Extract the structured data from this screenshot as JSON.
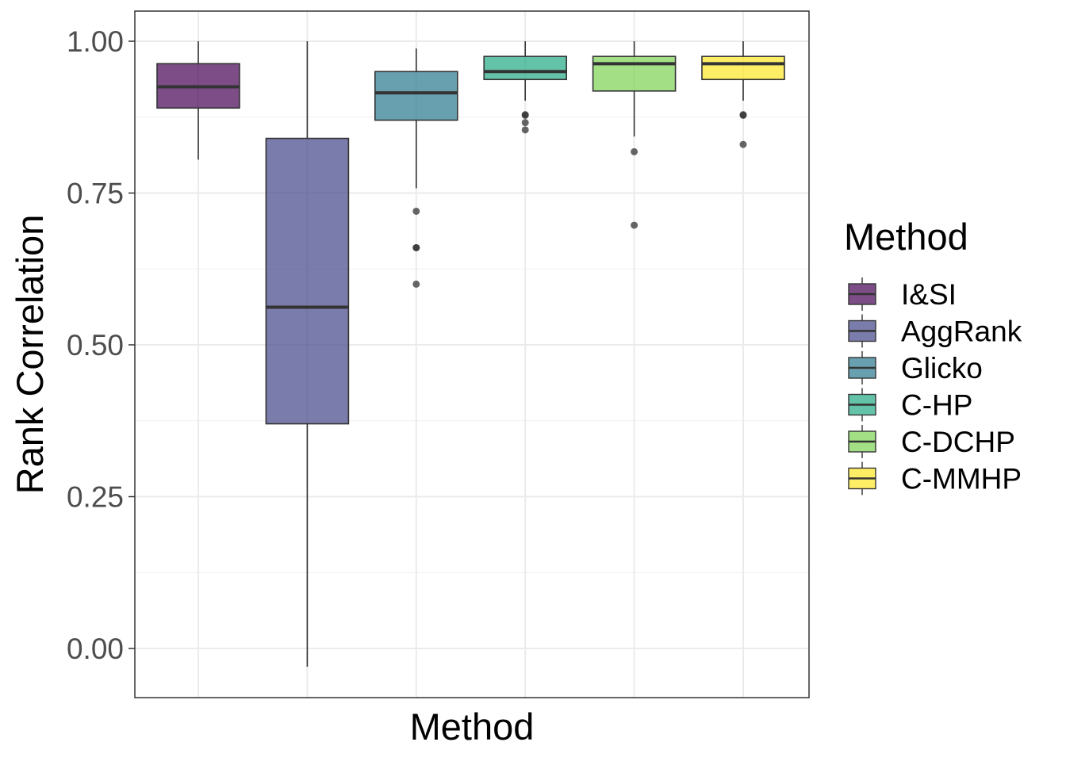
{
  "chart_data": {
    "type": "boxplot",
    "title": "",
    "xlabel": "Method",
    "ylabel": "Rank Correlation",
    "ylim": [
      -0.08,
      1.05
    ],
    "y_ticks": [
      0.0,
      0.25,
      0.5,
      0.75,
      1.0
    ],
    "y_tick_labels": [
      "0.00",
      "0.25",
      "0.50",
      "0.75",
      "1.00"
    ],
    "grid": true,
    "legend": {
      "title": "Method",
      "position": "right"
    },
    "series": [
      {
        "name": "I&SI",
        "color": "#440154",
        "whisker_low": 0.805,
        "q1": 0.89,
        "median": 0.925,
        "q3": 0.963,
        "whisker_high": 1.0,
        "outliers": []
      },
      {
        "name": "AggRank",
        "color": "#414487",
        "whisker_low": -0.03,
        "q1": 0.37,
        "median": 0.562,
        "q3": 0.84,
        "whisker_high": 1.0,
        "outliers": []
      },
      {
        "name": "Glicko",
        "color": "#2A788E",
        "whisker_low": 0.758,
        "q1": 0.87,
        "median": 0.915,
        "q3": 0.95,
        "whisker_high": 0.988,
        "outliers": [
          0.72,
          0.66,
          0.66,
          0.6
        ]
      },
      {
        "name": "C-HP",
        "color": "#22A884",
        "whisker_low": 0.902,
        "q1": 0.937,
        "median": 0.95,
        "q3": 0.975,
        "whisker_high": 1.0,
        "outliers": [
          0.879,
          0.878,
          0.866,
          0.854
        ]
      },
      {
        "name": "C-DCHP",
        "color": "#7AD151",
        "whisker_low": 0.843,
        "q1": 0.918,
        "median": 0.963,
        "q3": 0.975,
        "whisker_high": 1.0,
        "outliers": [
          0.818,
          0.697
        ]
      },
      {
        "name": "C-MMHP",
        "color": "#FDE725",
        "whisker_low": 0.902,
        "q1": 0.937,
        "median": 0.963,
        "q3": 0.975,
        "whisker_high": 1.0,
        "outliers": [
          0.879,
          0.878,
          0.83
        ]
      }
    ]
  }
}
